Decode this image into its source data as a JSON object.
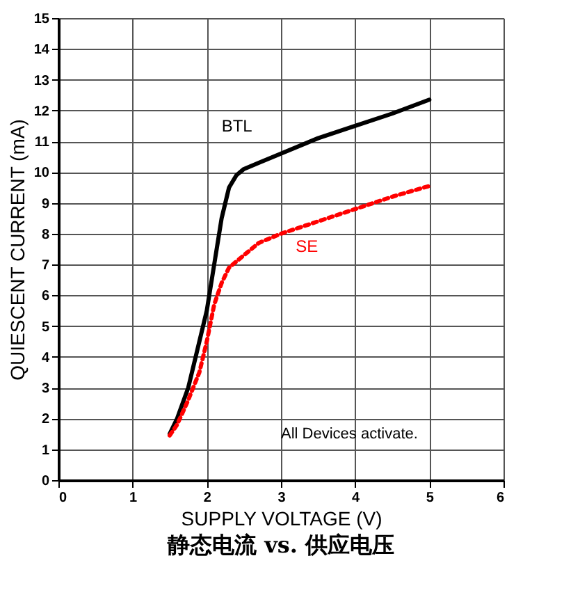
{
  "chart_data": {
    "type": "line",
    "title": "静态电流  vs.  供应电压",
    "xlabel": "SUPPLY VOLTAGE (V)",
    "ylabel": "QUIESCENT CURRENT (mA)",
    "series": [
      {
        "name": "BTL",
        "color": "#000000",
        "line_style": "solid",
        "x": [
          1.5,
          1.6,
          1.75,
          1.9,
          2.0,
          2.1,
          2.2,
          2.3,
          2.4,
          2.5,
          2.7,
          3.0,
          3.5,
          4.0,
          4.5,
          5.0
        ],
        "values": [
          1.5,
          2.0,
          3.0,
          4.5,
          5.5,
          7.0,
          8.5,
          9.5,
          9.9,
          10.1,
          10.3,
          10.6,
          11.1,
          11.5,
          11.9,
          12.35
        ]
      },
      {
        "name": "SE",
        "color": "#ff0000",
        "line_style": "dotted",
        "x": [
          1.5,
          1.6,
          1.75,
          1.9,
          2.0,
          2.1,
          2.2,
          2.3,
          2.5,
          2.7,
          3.0,
          3.5,
          4.0,
          4.5,
          5.0
        ],
        "values": [
          1.45,
          1.8,
          2.6,
          3.5,
          4.5,
          5.7,
          6.4,
          6.9,
          7.3,
          7.7,
          8.0,
          8.4,
          8.8,
          9.2,
          9.55
        ]
      }
    ],
    "annotations": [
      "All Devices activate."
    ],
    "xlim": [
      0,
      6
    ],
    "xticks": [
      0,
      1,
      2,
      3,
      4,
      5,
      6
    ],
    "ylim": [
      0,
      15
    ],
    "yticks": [
      0,
      1,
      2,
      3,
      4,
      5,
      6,
      7,
      8,
      9,
      10,
      11,
      12,
      13,
      14,
      15
    ],
    "grid": true,
    "legend": false,
    "marker": "none"
  }
}
